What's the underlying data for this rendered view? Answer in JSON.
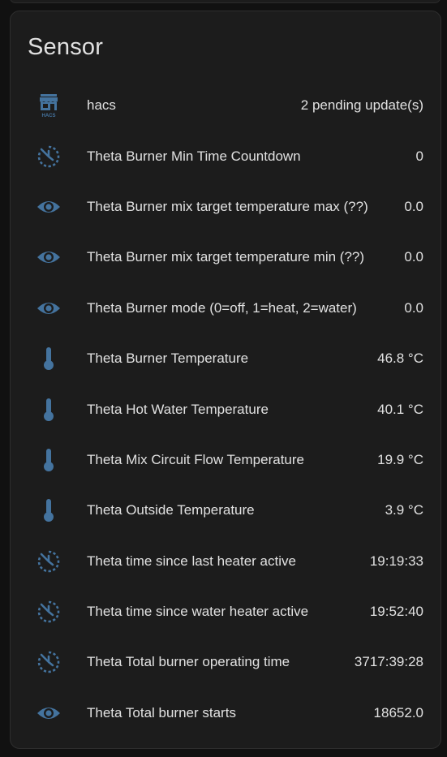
{
  "card": {
    "title": "Sensor"
  },
  "colors": {
    "background": "#111111",
    "card": "#1c1c1c",
    "text": "#e1e1e1",
    "icon": "#44739e"
  },
  "sensors": [
    {
      "icon": "hacs-icon",
      "name": "hacs",
      "value": "2 pending update(s)"
    },
    {
      "icon": "timer-icon",
      "name": "Theta Burner Min Time Countdown",
      "value": "0"
    },
    {
      "icon": "eye-icon",
      "name": "Theta Burner mix target temperature max (??)",
      "value": "0.0"
    },
    {
      "icon": "eye-icon",
      "name": "Theta Burner mix target temperature min (??)",
      "value": "0.0"
    },
    {
      "icon": "eye-icon",
      "name": "Theta Burner mode (0=off, 1=heat, 2=water)",
      "value": "0.0"
    },
    {
      "icon": "thermometer-icon",
      "name": "Theta Burner Temperature",
      "value": "46.8 °C"
    },
    {
      "icon": "thermometer-icon",
      "name": "Theta Hot Water Temperature",
      "value": "40.1 °C"
    },
    {
      "icon": "thermometer-icon",
      "name": "Theta Mix Circuit Flow Temperature",
      "value": "19.9 °C"
    },
    {
      "icon": "thermometer-icon",
      "name": "Theta Outside Temperature",
      "value": "3.9 °C"
    },
    {
      "icon": "timer-icon",
      "name": "Theta time since last heater active",
      "value": "19:19:33"
    },
    {
      "icon": "timer-icon",
      "name": "Theta time since water heater active",
      "value": "19:52:40"
    },
    {
      "icon": "timer-icon",
      "name": "Theta Total burner operating time",
      "value": "3717:39:28"
    },
    {
      "icon": "eye-icon",
      "name": "Theta Total burner starts",
      "value": "18652.0"
    }
  ]
}
